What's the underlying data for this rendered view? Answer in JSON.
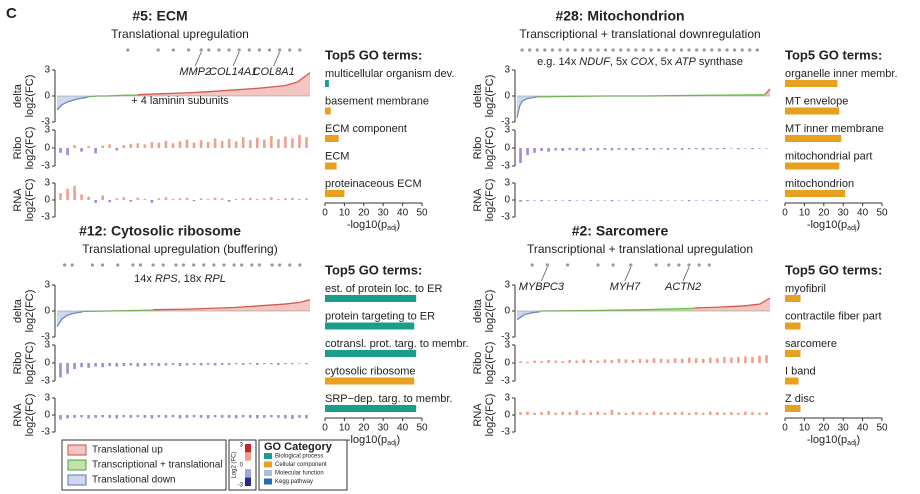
{
  "panel_label": "C",
  "chart_data": [
    {
      "type": "profile",
      "title": "#5: ECM",
      "subtitle": "Translational upregulation",
      "hits": [
        28,
        40,
        46,
        52,
        57,
        60,
        64,
        68,
        72,
        76,
        80,
        84,
        88,
        92,
        96
      ],
      "genes": [
        {
          "label": "MMP2",
          "x": 57
        },
        {
          "label": "COL14A1",
          "x": 72
        },
        {
          "label": "COL8A1",
          "x": 88
        }
      ],
      "note": [
        "+ 4 laminin subunits"
      ],
      "pos_color": "#f0a090",
      "neg_color": "#a48ad0",
      "delta": {
        "ylabel": [
          "delta",
          "log2(FC)"
        ],
        "xlim": [
          0,
          100
        ],
        "ylim": [
          -3,
          3
        ],
        "yticks": [
          -3,
          0,
          3
        ],
        "series": [
          {
            "color": "#6c86c4",
            "fill": "#cdd7ee",
            "x": [
              0,
              2,
              4,
              6,
              8,
              10,
              12
            ],
            "values": [
              -1.6,
              -1.0,
              -0.7,
              -0.5,
              -0.35,
              -0.25,
              -0.15
            ]
          },
          {
            "color": "#6abf4b",
            "fill": "#bfe3a8",
            "x": [
              12,
              16,
              20,
              24,
              28,
              32
            ],
            "values": [
              -0.1,
              0,
              0,
              0.05,
              0.1,
              0.1
            ]
          },
          {
            "color": "#d45a50",
            "fill": "#f3c6c1",
            "x": [
              32,
              40,
              50,
              60,
              70,
              80,
              90,
              95,
              100
            ],
            "values": [
              0.15,
              0.25,
              0.35,
              0.5,
              0.7,
              0.9,
              1.2,
              1.6,
              2.7
            ]
          }
        ]
      },
      "ribo": {
        "ylabel": [
          "Ribo",
          "log2(FC)"
        ],
        "ylim": [
          -3,
          3
        ],
        "yticks": [
          -3,
          0,
          3
        ],
        "values": [
          -0.8,
          -1.2,
          0.5,
          -0.6,
          0.3,
          -0.9,
          0.4,
          0.6,
          -0.4,
          0.5,
          0.7,
          0.8,
          0.6,
          1.0,
          0.9,
          1.2,
          0.8,
          1.1,
          1.4,
          0.9,
          1.3,
          1.0,
          1.6,
          1.2,
          1.5,
          1.1,
          1.8,
          1.3,
          1.7,
          1.4,
          2.0,
          1.5,
          1.9,
          1.6,
          2.2,
          1.8
        ]
      },
      "rna": {
        "ylabel": [
          "RNA",
          "log2(FC)"
        ],
        "ylim": [
          -3,
          3
        ],
        "yticks": [
          -3,
          0,
          3
        ],
        "values": [
          1.2,
          2.0,
          2.5,
          1.0,
          0.6,
          -0.5,
          0.8,
          -0.4,
          0.3,
          0.5,
          -0.3,
          0.4,
          0.2,
          -0.5,
          0.3,
          0.5,
          0.2,
          0.3,
          0.4,
          -0.2,
          0.3,
          0.2,
          0.4,
          0.3,
          -0.3,
          0.2,
          0.3,
          0.4,
          0.2,
          0.3,
          0.5,
          0.2,
          0.3,
          0.4,
          0.2,
          0.3
        ]
      },
      "go": {
        "type": "bar",
        "title": "Top5 GO terms:",
        "categories": [
          "multicellular organism dev.",
          "basement membrane",
          "ECM component",
          "ECM",
          "proteinaceous ECM"
        ],
        "values": [
          2,
          3,
          7,
          6,
          10
        ],
        "colors": [
          "#1a9e8a",
          "#e8a020",
          "#e8a020",
          "#e8a020",
          "#e8a020"
        ],
        "xlim": [
          0,
          50
        ],
        "xticks": [
          0,
          10,
          20,
          30,
          40,
          50
        ],
        "xlabel": [
          "-log10(p",
          "adj",
          ")"
        ]
      }
    },
    {
      "type": "profile",
      "title": "#28: Mitochondrion",
      "subtitle": "Transcriptional + translational downregulation",
      "hits": [
        2,
        5,
        8,
        11,
        14,
        17,
        20,
        23,
        26,
        29,
        32,
        35,
        38,
        41,
        44,
        47,
        50,
        53,
        56,
        59,
        62,
        65,
        68,
        71,
        74,
        77,
        80,
        83,
        86,
        89,
        92,
        95
      ],
      "genes": [],
      "note": [
        "e.g. 14x ",
        "NDUF",
        ", 5x ",
        "COX",
        ", 5x ",
        "ATP",
        " synthase"
      ],
      "pos_color": "#f0a090",
      "neg_color": "#a48ad0",
      "delta": {
        "ylabel": [
          "delta",
          "log2(FC)"
        ],
        "xlim": [
          0,
          100
        ],
        "ylim": [
          -3,
          3
        ],
        "yticks": [
          -3,
          0,
          3
        ],
        "series": [
          {
            "color": "#6c86c4",
            "fill": "#cdd7ee",
            "x": [
              0,
              1,
              2,
              4,
              6,
              8
            ],
            "values": [
              -2.5,
              -1.2,
              -0.6,
              -0.3,
              -0.2,
              -0.1
            ]
          },
          {
            "color": "#6abf4b",
            "fill": "#bfe3a8",
            "x": [
              8,
              20,
              35,
              50,
              65,
              80,
              98
            ],
            "values": [
              -0.1,
              -0.05,
              0,
              0,
              0.05,
              0.1,
              0.15
            ]
          },
          {
            "color": "#d45a50",
            "fill": "#f3c6c1",
            "x": [
              98,
              100
            ],
            "values": [
              0.2,
              0.8
            ]
          }
        ]
      },
      "ribo": {
        "ylabel": [
          "Ribo",
          "log2(FC)"
        ],
        "ylim": [
          -3,
          3
        ],
        "yticks": [
          -3,
          0,
          3
        ],
        "values": [
          -2.5,
          -1.2,
          -0.8,
          -0.5,
          -0.6,
          -0.4,
          -0.5,
          -0.3,
          -0.4,
          -0.5,
          -0.3,
          -0.4,
          -0.3,
          -0.4,
          -0.3,
          -0.3,
          -0.4,
          -0.2,
          -0.3,
          -0.3,
          -0.2,
          -0.3,
          -0.2,
          -0.3,
          -0.2,
          -0.2,
          -0.3,
          -0.2,
          -0.2,
          -0.2,
          -0.1,
          -0.2,
          -0.1,
          -0.2,
          -0.1,
          -0.1
        ]
      },
      "rna": {
        "ylabel": [
          "RNA",
          "log2(FC)"
        ],
        "ylim": [
          -3,
          3
        ],
        "yticks": [
          -3,
          0,
          3
        ],
        "values": [
          -0.3,
          -0.2,
          -0.1,
          -0.2,
          -0.1,
          -0.15,
          -0.1,
          -0.2,
          -0.1,
          -0.1,
          -0.15,
          -0.1,
          -0.1,
          -0.2,
          -0.1,
          -0.1,
          -0.15,
          -0.1,
          -0.1,
          -0.1,
          -0.15,
          -0.1,
          -0.1,
          -0.1,
          -0.2,
          -0.1,
          -0.1,
          -0.1,
          -0.15,
          -0.1,
          -0.1,
          -0.1,
          -0.1,
          -0.15,
          -0.1,
          -0.1
        ]
      },
      "go": {
        "type": "bar",
        "title": "Top5 GO terms:",
        "categories": [
          "organelle inner membr.",
          "MT envelope",
          "MT inner membrane",
          "mitochondrial part",
          "mitochondrion"
        ],
        "values": [
          27,
          28,
          29,
          28,
          31
        ],
        "colors": [
          "#e8a020",
          "#e8a020",
          "#e8a020",
          "#e8a020",
          "#e8a020"
        ],
        "xlim": [
          0,
          50
        ],
        "xticks": [
          0,
          10,
          20,
          30,
          40,
          50
        ],
        "xlabel": [
          "-log10(p",
          "adj",
          ")"
        ]
      }
    },
    {
      "type": "profile",
      "title": "#12: Cytosolic ribosome",
      "subtitle": "Translational upregulation (buffering)",
      "hits": [
        3,
        6,
        14,
        18,
        24,
        30,
        33,
        38,
        42,
        47,
        50,
        54,
        58,
        62,
        66,
        70,
        73,
        77,
        80,
        85,
        88,
        92,
        96
      ],
      "genes": [],
      "note": [
        "14x ",
        "RPS",
        ", 18x ",
        "RPL"
      ],
      "pos_color": "#f0a090",
      "neg_color": "#a48ad0",
      "delta": {
        "ylabel": [
          "delta",
          "log2(FC)"
        ],
        "xlim": [
          0,
          100
        ],
        "ylim": [
          -3,
          3
        ],
        "yticks": [
          -3,
          0,
          3
        ],
        "series": [
          {
            "color": "#6c86c4",
            "fill": "#cdd7ee",
            "x": [
              0,
              2,
              4,
              6,
              8,
              10
            ],
            "values": [
              -1.8,
              -0.9,
              -0.5,
              -0.3,
              -0.2,
              -0.1
            ]
          },
          {
            "color": "#6abf4b",
            "fill": "#bfe3a8",
            "x": [
              10,
              20,
              30,
              38
            ],
            "values": [
              -0.05,
              0,
              0.05,
              0.1
            ]
          },
          {
            "color": "#d45a50",
            "fill": "#f3c6c1",
            "x": [
              38,
              50,
              60,
              70,
              80,
              90,
              96,
              100
            ],
            "values": [
              0.15,
              0.2,
              0.3,
              0.4,
              0.6,
              0.8,
              1.0,
              1.3
            ]
          }
        ]
      },
      "ribo": {
        "ylabel": [
          "Ribo",
          "log2(FC)"
        ],
        "ylim": [
          -3,
          3
        ],
        "yticks": [
          -3,
          0,
          3
        ],
        "values": [
          -2.4,
          -1.8,
          -1.0,
          -0.7,
          -0.8,
          -0.6,
          -0.7,
          -0.5,
          -0.6,
          -0.5,
          -0.4,
          -0.6,
          -0.5,
          -0.4,
          -0.5,
          -0.4,
          -0.3,
          -0.5,
          -0.4,
          -0.3,
          -0.4,
          -0.3,
          -0.4,
          -0.3,
          -0.3,
          -0.2,
          -0.3,
          -0.2,
          -0.3,
          -0.2,
          -0.2,
          -0.3,
          -0.2,
          -0.2,
          -0.1,
          -0.2
        ]
      },
      "rna": {
        "ylabel": [
          "RNA",
          "log2(FC)"
        ],
        "ylim": [
          -3,
          3
        ],
        "yticks": [
          -3,
          0,
          3
        ],
        "values": [
          -0.8,
          -0.6,
          -0.5,
          -0.4,
          -0.6,
          -0.5,
          -0.4,
          -0.5,
          -0.6,
          -0.4,
          -0.5,
          -0.4,
          -0.5,
          -0.6,
          -0.4,
          -0.5,
          -0.4,
          -0.6,
          -0.5,
          -0.4,
          -0.5,
          -0.6,
          -0.4,
          -0.5,
          -0.5,
          -0.6,
          -0.4,
          -0.5,
          -0.6,
          -0.5,
          -0.4,
          -0.5,
          -0.6,
          -0.7,
          -0.5,
          -0.6
        ]
      },
      "go": {
        "type": "bar",
        "title": "Top5 GO terms:",
        "categories": [
          "est. of protein loc. to ER",
          "protein targeting to ER",
          "cotransl. prot. targ. to membr.",
          "cytosolic ribosome",
          "SRP−dep. targ. to membr."
        ],
        "values": [
          47,
          46,
          47,
          46,
          47
        ],
        "colors": [
          "#1a9e8a",
          "#1a9e8a",
          "#1a9e8a",
          "#e8a020",
          "#1a9e8a"
        ],
        "xlim": [
          0,
          50
        ],
        "xticks": [
          0,
          10,
          20,
          30,
          40,
          50
        ],
        "xlabel": [
          "-log10(p",
          "adj",
          ")"
        ]
      }
    },
    {
      "type": "profile",
      "title": "#2: Sarcomere",
      "subtitle": "Transcriptional + translational upregulation",
      "hits": [
        6,
        12,
        20,
        32,
        38,
        45,
        55,
        60,
        64,
        68,
        72,
        76
      ],
      "genes": [
        {
          "label": "MYBPC3",
          "x": 12
        },
        {
          "label": "MYH7",
          "x": 45
        },
        {
          "label": "ACTN2",
          "x": 68
        }
      ],
      "note": [],
      "pos_color": "#f0a090",
      "neg_color": "#a48ad0",
      "delta": {
        "ylabel": [
          "delta",
          "log2(FC)"
        ],
        "xlim": [
          0,
          100
        ],
        "ylim": [
          -3,
          3
        ],
        "yticks": [
          -3,
          0,
          3
        ],
        "series": [
          {
            "color": "#6c86c4",
            "fill": "#cdd7ee",
            "x": [
              0,
              3,
              6,
              9
            ],
            "values": [
              -1.0,
              -0.4,
              -0.2,
              -0.1
            ]
          },
          {
            "color": "#6abf4b",
            "fill": "#bfe3a8",
            "x": [
              9,
              30,
              50,
              70
            ],
            "values": [
              0,
              0.05,
              0.15,
              0.3
            ]
          },
          {
            "color": "#d45a50",
            "fill": "#f3c6c1",
            "x": [
              70,
              80,
              90,
              96,
              100
            ],
            "values": [
              0.35,
              0.45,
              0.6,
              0.8,
              1.5
            ]
          }
        ]
      },
      "ribo": {
        "ylabel": [
          "Ribo",
          "log2(FC)"
        ],
        "ylim": [
          -3,
          3
        ],
        "yticks": [
          -3,
          0,
          3
        ],
        "values": [
          0.3,
          0.2,
          0.4,
          0.3,
          0.5,
          0.4,
          0.3,
          0.5,
          0.4,
          0.6,
          0.5,
          0.4,
          0.6,
          0.5,
          0.7,
          0.6,
          0.5,
          0.7,
          0.6,
          0.8,
          0.7,
          0.6,
          0.8,
          0.7,
          0.9,
          0.8,
          0.7,
          0.9,
          0.8,
          1.0,
          0.9,
          1.0,
          1.1,
          1.0,
          1.2,
          1.3
        ]
      },
      "rna": {
        "ylabel": [
          "RNA",
          "log2(FC)"
        ],
        "ylim": [
          -3,
          3
        ],
        "yticks": [
          -3,
          0,
          3
        ],
        "values": [
          0.5,
          0.6,
          0.4,
          0.5,
          0.7,
          0.4,
          0.6,
          0.5,
          0.8,
          0.4,
          0.5,
          0.6,
          0.4,
          0.9,
          0.5,
          0.4,
          0.6,
          0.5,
          0.4,
          0.6,
          0.5,
          0.4,
          0.5,
          0.6,
          0.4,
          0.5,
          0.4,
          0.6,
          0.5,
          0.4,
          0.5,
          0.4,
          0.6,
          0.5,
          0.4,
          0.5
        ]
      },
      "go": {
        "type": "bar",
        "title": "Top5 GO terms:",
        "categories": [
          "myofibril",
          "contractile fiber part",
          "sarcomere",
          "I band",
          "Z disc"
        ],
        "values": [
          8,
          8,
          8,
          7,
          8
        ],
        "colors": [
          "#e8a020",
          "#e8a020",
          "#e8a020",
          "#e8a020",
          "#e8a020"
        ],
        "xlim": [
          0,
          50
        ],
        "xticks": [
          0,
          10,
          20,
          30,
          40,
          50
        ],
        "xlabel": [
          "-log10(p",
          "adj",
          ")"
        ]
      }
    }
  ],
  "legend": {
    "items": [
      {
        "name": "Translational up",
        "color": "#f3c6c1",
        "stroke": "#c05048"
      },
      {
        "name": "Transcriptional + translational",
        "color": "#bfe3a8",
        "stroke": "#5a9e3c"
      },
      {
        "name": "Translational down",
        "color": "#cdd7ee",
        "stroke": "#5a70a8"
      }
    ],
    "scale": {
      "label": "Log2 (FC)",
      "ticks": [
        3,
        0,
        -3
      ],
      "colors": [
        "#c0282c",
        "#f0a090",
        "#ffffff",
        "#a0a8d8",
        "#2a2a8c"
      ]
    },
    "go_category": {
      "title": "GO Category",
      "items": [
        {
          "name": "Biological process",
          "color": "#1a9e8a"
        },
        {
          "name": "Cellular component",
          "color": "#e8a020"
        },
        {
          "name": "Molecular function",
          "color": "#a8c0d8"
        },
        {
          "name": "Kegg pathway",
          "color": "#1f6fb5"
        }
      ]
    }
  }
}
